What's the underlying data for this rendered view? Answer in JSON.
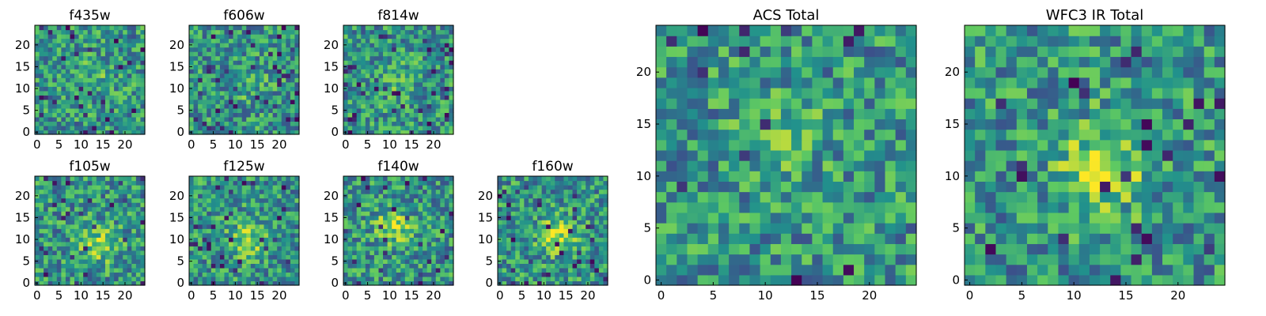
{
  "figure": {
    "colormap": "viridis",
    "colors": [
      "#440154",
      "#3b528b",
      "#21918c",
      "#5ec962",
      "#fde725"
    ],
    "background": "#ffffff"
  },
  "chart_data": [
    {
      "type": "heatmap",
      "title": "f435w",
      "grid_size": 25,
      "xticks": [
        0,
        5,
        10,
        15,
        20
      ],
      "yticks": [
        0,
        5,
        10,
        15,
        20
      ],
      "xlim": [
        0,
        24
      ],
      "ylim": [
        0,
        24
      ],
      "values_note": "pixel noise map; random-seeded",
      "seed": 11,
      "peak": [
        13,
        13
      ],
      "peak_strength": 0.1,
      "dark_fraction": 0.04
    },
    {
      "type": "heatmap",
      "title": "f606w",
      "grid_size": 25,
      "xticks": [
        0,
        5,
        10,
        15,
        20
      ],
      "yticks": [
        0,
        5,
        10,
        15,
        20
      ],
      "xlim": [
        0,
        24
      ],
      "ylim": [
        0,
        24
      ],
      "seed": 23,
      "peak": [
        13,
        11
      ],
      "peak_strength": 0.1,
      "dark_fraction": 0.06
    },
    {
      "type": "heatmap",
      "title": "f814w",
      "grid_size": 25,
      "xticks": [
        0,
        5,
        10,
        15,
        20
      ],
      "yticks": [
        0,
        5,
        10,
        15,
        20
      ],
      "xlim": [
        0,
        24
      ],
      "ylim": [
        0,
        24
      ],
      "seed": 37,
      "peak": [
        12,
        12
      ],
      "peak_strength": 0.12,
      "dark_fraction": 0.06
    },
    {
      "type": "heatmap",
      "title": "f105w",
      "grid_size": 25,
      "xticks": [
        0,
        5,
        10,
        15,
        20
      ],
      "yticks": [
        0,
        5,
        10,
        15,
        20
      ],
      "xlim": [
        0,
        24
      ],
      "ylim": [
        0,
        24
      ],
      "seed": 41,
      "peak": [
        14,
        9
      ],
      "peak_strength": 0.3,
      "dark_fraction": 0.05
    },
    {
      "type": "heatmap",
      "title": "f125w",
      "grid_size": 25,
      "xticks": [
        0,
        5,
        10,
        15,
        20
      ],
      "yticks": [
        0,
        5,
        10,
        15,
        20
      ],
      "xlim": [
        0,
        24
      ],
      "ylim": [
        0,
        24
      ],
      "seed": 53,
      "peak": [
        13,
        10
      ],
      "peak_strength": 0.3,
      "dark_fraction": 0.06
    },
    {
      "type": "heatmap",
      "title": "f140w",
      "grid_size": 25,
      "xticks": [
        0,
        5,
        10,
        15,
        20
      ],
      "yticks": [
        0,
        5,
        10,
        15,
        20
      ],
      "xlim": [
        0,
        24
      ],
      "ylim": [
        0,
        24
      ],
      "seed": 67,
      "peak": [
        11,
        13
      ],
      "peak_strength": 0.3,
      "dark_fraction": 0.03
    },
    {
      "type": "heatmap",
      "title": "f160w",
      "grid_size": 25,
      "xticks": [
        0,
        5,
        10,
        15,
        20
      ],
      "yticks": [
        0,
        5,
        10,
        15,
        20
      ],
      "xlim": [
        0,
        24
      ],
      "ylim": [
        0,
        24
      ],
      "seed": 79,
      "peak": [
        13,
        11
      ],
      "peak_strength": 0.3,
      "dark_fraction": 0.06
    },
    {
      "type": "heatmap",
      "title": "ACS Total",
      "grid_size": 25,
      "xticks": [
        0,
        5,
        10,
        15,
        20
      ],
      "yticks": [
        0,
        5,
        10,
        15,
        20
      ],
      "xlim": [
        0,
        24
      ],
      "ylim": [
        0,
        24
      ],
      "seed": 97,
      "peak": [
        12,
        14
      ],
      "peak_strength": 0.15,
      "dark_fraction": 0.03
    },
    {
      "type": "heatmap",
      "title": "WFC3 IR Total",
      "grid_size": 25,
      "xticks": [
        0,
        5,
        10,
        15,
        20
      ],
      "yticks": [
        0,
        5,
        10,
        15,
        20
      ],
      "xlim": [
        0,
        24
      ],
      "ylim": [
        0,
        24
      ],
      "seed": 131,
      "peak": [
        13,
        11
      ],
      "peak_strength": 0.35,
      "dark_fraction": 0.04
    }
  ]
}
